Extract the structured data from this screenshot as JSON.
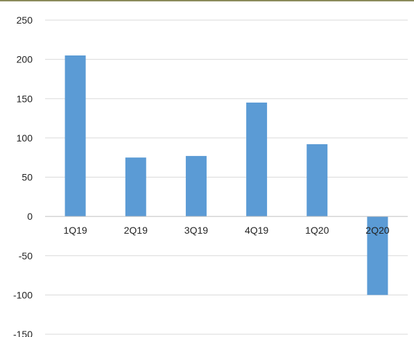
{
  "chart_data": {
    "type": "bar",
    "categories": [
      "1Q19",
      "2Q19",
      "3Q19",
      "4Q19",
      "1Q20",
      "2Q20"
    ],
    "values": [
      205,
      75,
      77,
      145,
      92,
      -100
    ],
    "ylim": [
      -150,
      250
    ],
    "yticks": [
      250,
      200,
      150,
      100,
      50,
      0,
      -50,
      -100,
      -150
    ],
    "ytick_labels": [
      "250",
      "200",
      "150",
      "100",
      "50",
      "0",
      "-50",
      "-100",
      "-150"
    ],
    "grid": true,
    "bar_color": "#5b9bd5",
    "grid_color": "#d9d9d9",
    "axis_color": "#bfbfbf",
    "top_rule_color": "#8a8a5a"
  }
}
